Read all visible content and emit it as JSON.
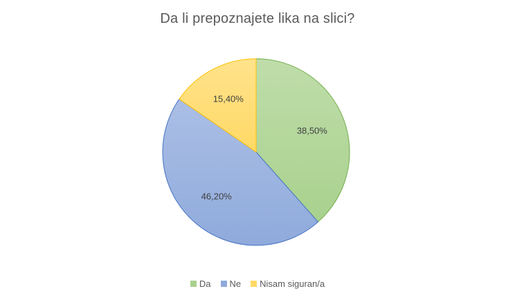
{
  "chart_data": {
    "type": "pie",
    "title": "Da li prepoznajete lika na slici?",
    "categories": [
      "Da",
      "Ne",
      "Nisam siguran/a"
    ],
    "values": [
      38.5,
      46.2,
      15.4
    ],
    "data_labels": [
      "38,50%",
      "46,20%",
      "15,40%"
    ],
    "colors": [
      "#a9d18e",
      "#8faadc",
      "#ffd966"
    ],
    "stroke_colors": [
      "#70ad47",
      "#4472c4",
      "#ffc000"
    ],
    "legend_position": "bottom"
  }
}
